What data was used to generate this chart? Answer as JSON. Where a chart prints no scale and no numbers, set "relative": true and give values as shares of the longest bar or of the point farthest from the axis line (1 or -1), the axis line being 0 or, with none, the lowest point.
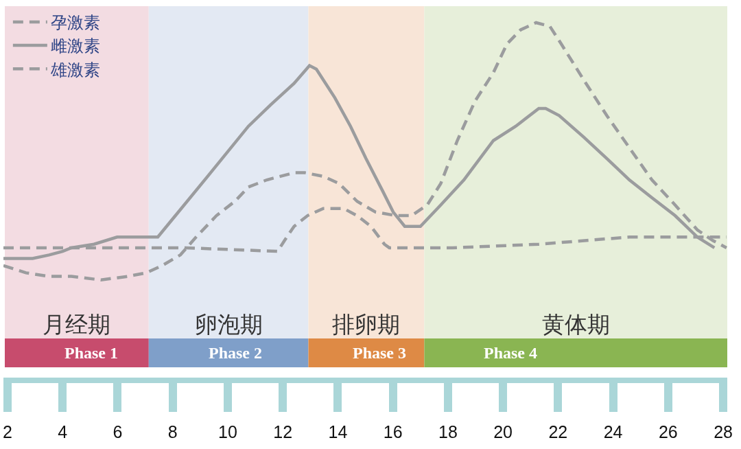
{
  "chart_data": {
    "type": "line",
    "relative": true,
    "legend": "top left",
    "xlim": [
      1.85,
      28.15
    ],
    "xticks": [
      2,
      4,
      6,
      8,
      10,
      12,
      14,
      16,
      18,
      20,
      22,
      24,
      26,
      28
    ],
    "series": [
      {
        "name": "孕激素",
        "color": "#9b9c9e",
        "line_style": "dashed",
        "x": [
          1.85,
          2.67,
          3.51,
          4.32,
          5.39,
          6.37,
          7.04,
          7.61,
          8.28,
          8.85,
          9.59,
          10.26,
          10.75,
          11.42,
          12.41,
          12.8,
          13.47,
          14.04,
          14.7,
          15.37,
          16.11,
          16.68,
          17.25,
          17.74,
          18.34,
          18.98,
          19.65,
          20.14,
          20.64,
          21.2,
          21.7,
          22.12,
          22.93,
          23.77,
          24.59,
          25.41,
          26.25,
          27.06,
          27.63,
          28.12
        ],
        "values": [
          0.32,
          0.3,
          0.29,
          0.29,
          0.28,
          0.29,
          0.3,
          0.32,
          0.35,
          0.4,
          0.46,
          0.5,
          0.54,
          0.56,
          0.58,
          0.58,
          0.57,
          0.55,
          0.5,
          0.47,
          0.46,
          0.46,
          0.49,
          0.55,
          0.67,
          0.78,
          0.86,
          0.94,
          0.98,
          1,
          0.99,
          0.94,
          0.84,
          0.74,
          0.65,
          0.56,
          0.49,
          0.42,
          0.39,
          0.37
        ]
      },
      {
        "name": "雌激素",
        "color": "#9b9c9e",
        "line_style": "solid",
        "x": [
          1.85,
          2.91,
          3.51,
          4.0,
          4.32,
          5.14,
          5.98,
          6.79,
          7.46,
          9.27,
          10.75,
          11.56,
          12.41,
          12.97,
          13.22,
          13.89,
          14.46,
          15.02,
          15.62,
          16.01,
          16.43,
          17.0,
          17.74,
          18.58,
          19.65,
          20.46,
          21.3,
          21.55,
          22.04,
          22.93,
          23.77,
          24.59,
          25.41,
          26.25,
          27.06,
          27.68
        ],
        "values": [
          0.34,
          0.34,
          0.35,
          0.36,
          0.37,
          0.38,
          0.4,
          0.4,
          0.4,
          0.57,
          0.71,
          0.77,
          0.83,
          0.88,
          0.87,
          0.79,
          0.71,
          0.62,
          0.53,
          0.47,
          0.43,
          0.43,
          0.49,
          0.56,
          0.67,
          0.71,
          0.76,
          0.76,
          0.74,
          0.68,
          0.62,
          0.56,
          0.51,
          0.46,
          0.4,
          0.37
        ]
      },
      {
        "name": "雄激素",
        "color": "#9b9c9e",
        "line_style": "dashed",
        "x": [
          1.85,
          5.14,
          8.45,
          11.81,
          12.06,
          12.41,
          12.9,
          13.47,
          13.89,
          14.21,
          14.7,
          15.2,
          15.69,
          15.87,
          18.16,
          21.3,
          24.59,
          27.06,
          28.12
        ],
        "values": [
          0.37,
          0.37,
          0.37,
          0.36,
          0.39,
          0.43,
          0.46,
          0.48,
          0.48,
          0.48,
          0.46,
          0.43,
          0.38,
          0.37,
          0.37,
          0.38,
          0.4,
          0.4,
          0.4
        ]
      }
    ],
    "bands": [
      {
        "axis": "x",
        "from": 1.9,
        "to": 7.13,
        "label": "月经期",
        "color": "#f3dce2"
      },
      {
        "axis": "x",
        "from": 7.13,
        "to": 12.93,
        "label": "卵泡期",
        "color": "#e3e9f3"
      },
      {
        "axis": "x",
        "from": 12.93,
        "to": 17.14,
        "label": "排卵期",
        "color": "#f8e5d7"
      },
      {
        "axis": "x",
        "from": 17.14,
        "to": 28.15,
        "label": "黄体期",
        "color": "#e7efda"
      },
      {
        "axis": "x",
        "from": 1.9,
        "to": 7.13,
        "label": "Phase 1",
        "color": "#c74c6d"
      },
      {
        "axis": "x",
        "from": 7.13,
        "to": 12.93,
        "label": "Phase 2",
        "color": "#7f9fc9"
      },
      {
        "axis": "x",
        "from": 12.93,
        "to": 17.14,
        "label": "Phase 3",
        "color": "#de8a45"
      },
      {
        "axis": "x",
        "from": 17.14,
        "to": 28.15,
        "label": "Phase 4",
        "color": "#8ab552"
      }
    ]
  }
}
